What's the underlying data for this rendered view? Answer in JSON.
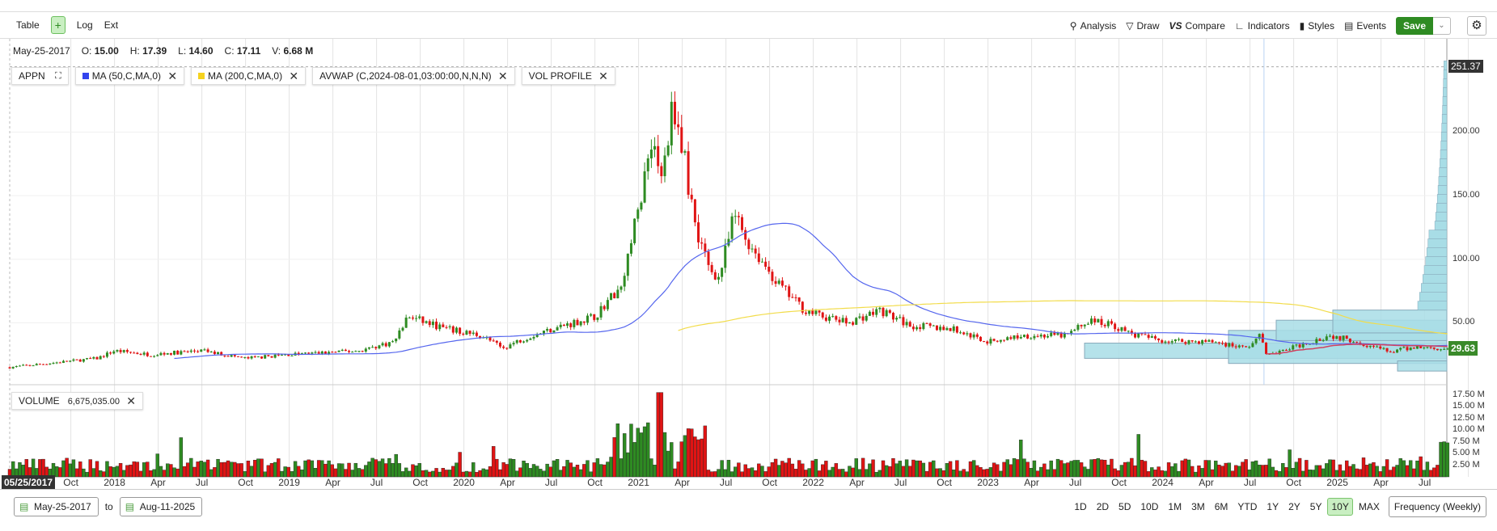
{
  "toolbar": {
    "left": [
      {
        "label": "Table"
      },
      {
        "label": "Log"
      },
      {
        "label": "Ext"
      }
    ],
    "crosshair_icon": "crosshair-icon",
    "right": [
      {
        "label": "Analysis",
        "icon": "analysis-icon"
      },
      {
        "label": "Draw",
        "icon": "draw-icon"
      },
      {
        "label": "Compare",
        "icon": "compare-icon"
      },
      {
        "label": "Indicators",
        "icon": "indicators-icon"
      },
      {
        "label": "Styles",
        "icon": "styles-icon"
      },
      {
        "label": "Events",
        "icon": "calendar-icon"
      }
    ],
    "save": "Save"
  },
  "info": {
    "date": "May-25-2017",
    "o_label": "O:",
    "o": "15.00",
    "h_label": "H:",
    "h": "17.39",
    "l_label": "L:",
    "l": "14.60",
    "c_label": "C:",
    "c": "17.11",
    "v_label": "V:",
    "v": "6.68 M"
  },
  "chips": {
    "symbol": "APPN",
    "ma50": "MA (50,C,MA,0)",
    "ma200": "MA (200,C,MA,0)",
    "avwap": "AVWAP (C,2024-08-01,03:00:00,N,N,N)",
    "volprofile": "VOL PROFILE",
    "volume": "VOLUME",
    "volume_value": "6,675,035.00"
  },
  "colors": {
    "up": "#2e8b22",
    "down": "#e01414",
    "ma50": "#5566ee",
    "ma200": "#f2dc4a",
    "profile": "#a8dde6",
    "save": "#2e8b22"
  },
  "price_axis": {
    "ticks": [
      "200.00",
      "150.00",
      "100.00",
      "50.00"
    ],
    "high_label": "251.37",
    "last_label": "29.63"
  },
  "volume_axis": {
    "ticks": [
      "17.50 M",
      "15.00 M",
      "12.50 M",
      "10.00 M",
      "7.50 M",
      "5.00 M",
      "2.50 M"
    ]
  },
  "x_axis": {
    "start_label": "05/25/2017",
    "labels": [
      "Oct",
      "2018",
      "Apr",
      "Jul",
      "Oct",
      "2019",
      "Apr",
      "Jul",
      "Oct",
      "2020",
      "Apr",
      "Jul",
      "Oct",
      "2021",
      "Apr",
      "Jul",
      "Oct",
      "2022",
      "Apr",
      "Jul",
      "Oct",
      "2023",
      "Apr",
      "Jul",
      "Oct",
      "2024",
      "Apr",
      "Jul",
      "Oct",
      "2025",
      "Apr",
      "Jul"
    ]
  },
  "bottom": {
    "from": "May-25-2017",
    "to_label": "to",
    "to": "Aug-11-2025",
    "ranges": [
      "1D",
      "2D",
      "5D",
      "10D",
      "1M",
      "3M",
      "6M",
      "YTD",
      "1Y",
      "2Y",
      "5Y",
      "10Y",
      "MAX"
    ],
    "active_range": "10Y",
    "frequency": "Frequency (Weekly)"
  },
  "chart_data": {
    "type": "candlestick",
    "symbol": "APPN",
    "frequency": "weekly",
    "close_keypoints": [
      [
        2017.4,
        15
      ],
      [
        2017.9,
        22
      ],
      [
        2018.0,
        28
      ],
      [
        2018.2,
        25
      ],
      [
        2018.5,
        28
      ],
      [
        2018.75,
        22
      ],
      [
        2019.0,
        25
      ],
      [
        2019.4,
        28
      ],
      [
        2019.6,
        35
      ],
      [
        2019.68,
        55
      ],
      [
        2019.9,
        45
      ],
      [
        2020.1,
        40
      ],
      [
        2020.22,
        30
      ],
      [
        2020.35,
        38
      ],
      [
        2020.5,
        45
      ],
      [
        2020.75,
        55
      ],
      [
        2020.9,
        80
      ],
      [
        2021.0,
        140
      ],
      [
        2021.08,
        200
      ],
      [
        2021.13,
        160
      ],
      [
        2021.2,
        225
      ],
      [
        2021.26,
        180
      ],
      [
        2021.32,
        130
      ],
      [
        2021.4,
        95
      ],
      [
        2021.46,
        85
      ],
      [
        2021.55,
        135
      ],
      [
        2021.62,
        115
      ],
      [
        2021.7,
        100
      ],
      [
        2021.8,
        80
      ],
      [
        2021.95,
        60
      ],
      [
        2022.05,
        55
      ],
      [
        2022.2,
        50
      ],
      [
        2022.38,
        60
      ],
      [
        2022.55,
        48
      ],
      [
        2022.8,
        45
      ],
      [
        2023.0,
        35
      ],
      [
        2023.2,
        40
      ],
      [
        2023.45,
        40
      ],
      [
        2023.58,
        52
      ],
      [
        2023.72,
        48
      ],
      [
        2023.8,
        42
      ],
      [
        2024.0,
        36
      ],
      [
        2024.3,
        35
      ],
      [
        2024.48,
        30
      ],
      [
        2024.56,
        40
      ],
      [
        2024.6,
        24
      ],
      [
        2024.8,
        33
      ],
      [
        2024.95,
        40
      ],
      [
        2025.1,
        36
      ],
      [
        2025.3,
        27
      ],
      [
        2025.45,
        31
      ],
      [
        2025.61,
        29.63
      ]
    ],
    "high": 251.37,
    "last": 29.63,
    "ylim": [
      0,
      260
    ],
    "avwap_anchor": "2024-08-01"
  }
}
